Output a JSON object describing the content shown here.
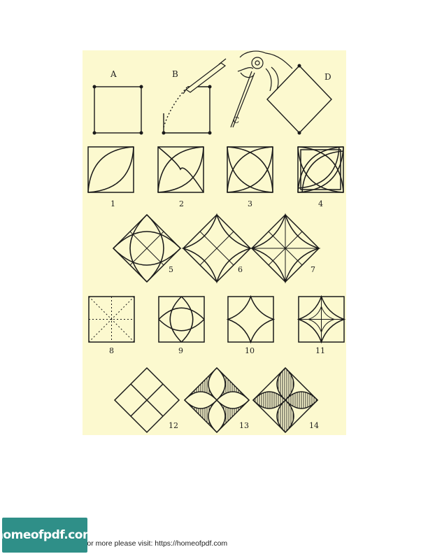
{
  "plate": {
    "background_color": "#fcf9cf",
    "ink_color": "#1a1a1a",
    "construction_letters": [
      "A",
      "B",
      "C",
      "D"
    ],
    "figure_numbers": [
      "1",
      "2",
      "3",
      "4",
      "5",
      "6",
      "7",
      "8",
      "9",
      "10",
      "11",
      "12",
      "13",
      "14"
    ]
  },
  "footer": {
    "text": "For more please visit: https://homeofpdf.com"
  },
  "badge": {
    "label": "homeofpdf.com",
    "color": "#2f8f88"
  }
}
